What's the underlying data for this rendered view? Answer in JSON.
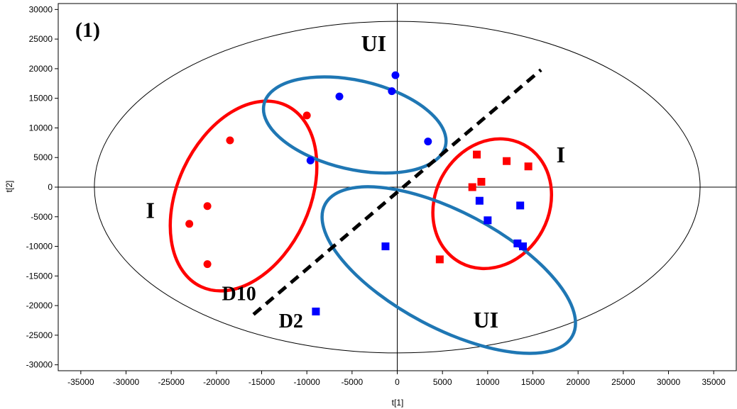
{
  "chart_data": {
    "type": "scatter",
    "panel_label": "(1)",
    "xlabel": "t[1]",
    "ylabel": "t[2]",
    "xlim": [
      -37500,
      37500
    ],
    "ylim": [
      -31000,
      31000
    ],
    "xticks": [
      -35000,
      -30000,
      -25000,
      -20000,
      -15000,
      -10000,
      -5000,
      0,
      5000,
      10000,
      15000,
      20000,
      25000,
      30000,
      35000
    ],
    "yticks": [
      -30000,
      -25000,
      -20000,
      -15000,
      -10000,
      -5000,
      0,
      5000,
      10000,
      15000,
      20000,
      25000,
      30000
    ],
    "grid": false,
    "confidence_ellipse": {
      "cx": 0,
      "cy": 0,
      "rx": 33500,
      "ry": 28000
    },
    "series": [
      {
        "marker": "circle",
        "color": "#ff0000",
        "points": [
          [
            -23000,
            -6200
          ],
          [
            -21000,
            -3200
          ],
          [
            -21000,
            -13000
          ],
          [
            -18500,
            7900
          ],
          [
            -10000,
            12100
          ]
        ]
      },
      {
        "marker": "circle",
        "color": "#0000ff",
        "points": [
          [
            -9600,
            4500
          ],
          [
            -6400,
            15300
          ],
          [
            -600,
            16200
          ],
          [
            -200,
            18900
          ],
          [
            3400,
            7700
          ]
        ]
      },
      {
        "marker": "square",
        "color": "#ff0000",
        "points": [
          [
            4700,
            -12200
          ],
          [
            8300,
            0
          ],
          [
            8800,
            5500
          ],
          [
            9300,
            900
          ],
          [
            12100,
            4400
          ],
          [
            14500,
            3500
          ]
        ]
      },
      {
        "marker": "square",
        "color": "#0000ff",
        "points": [
          [
            -9000,
            -21000
          ],
          [
            -1300,
            -10000
          ],
          [
            9100,
            -2300
          ],
          [
            10000,
            -5600
          ],
          [
            13300,
            -9500
          ],
          [
            13600,
            -3100
          ],
          [
            13900,
            -10000
          ]
        ]
      }
    ],
    "group_ellipses": [
      {
        "color": "#ff0000",
        "cx": -17000,
        "cy": -1500,
        "rx": 7300,
        "ry": 16900,
        "rotation_deg": 25
      },
      {
        "color": "#1f77b4",
        "cx": -4700,
        "cy": 10500,
        "rx": 10300,
        "ry": 7500,
        "rotation_deg": 13
      },
      {
        "color": "#ff0000",
        "cx": 10500,
        "cy": -2800,
        "rx": 6300,
        "ry": 11300,
        "rotation_deg": 28
      },
      {
        "color": "#1f77b4",
        "cx": 5700,
        "cy": -14000,
        "rx": 15500,
        "ry": 9800,
        "rotation_deg": 28
      }
    ],
    "separator_line": {
      "from": [
        -15900,
        -21500
      ],
      "to": [
        15900,
        19800
      ]
    },
    "annotations": [
      {
        "text": "UI",
        "x": -4000,
        "y": 23000,
        "size": 32
      },
      {
        "text": "I",
        "x": 17600,
        "y": 4200,
        "size": 32
      },
      {
        "text": "I",
        "x": -27800,
        "y": -5200,
        "size": 32
      },
      {
        "text": "D10",
        "x": -19400,
        "y": -19100,
        "size": 28
      },
      {
        "text": "D2",
        "x": -13100,
        "y": -23700,
        "size": 28
      },
      {
        "text": "UI",
        "x": 8400,
        "y": -23700,
        "size": 32
      }
    ]
  }
}
